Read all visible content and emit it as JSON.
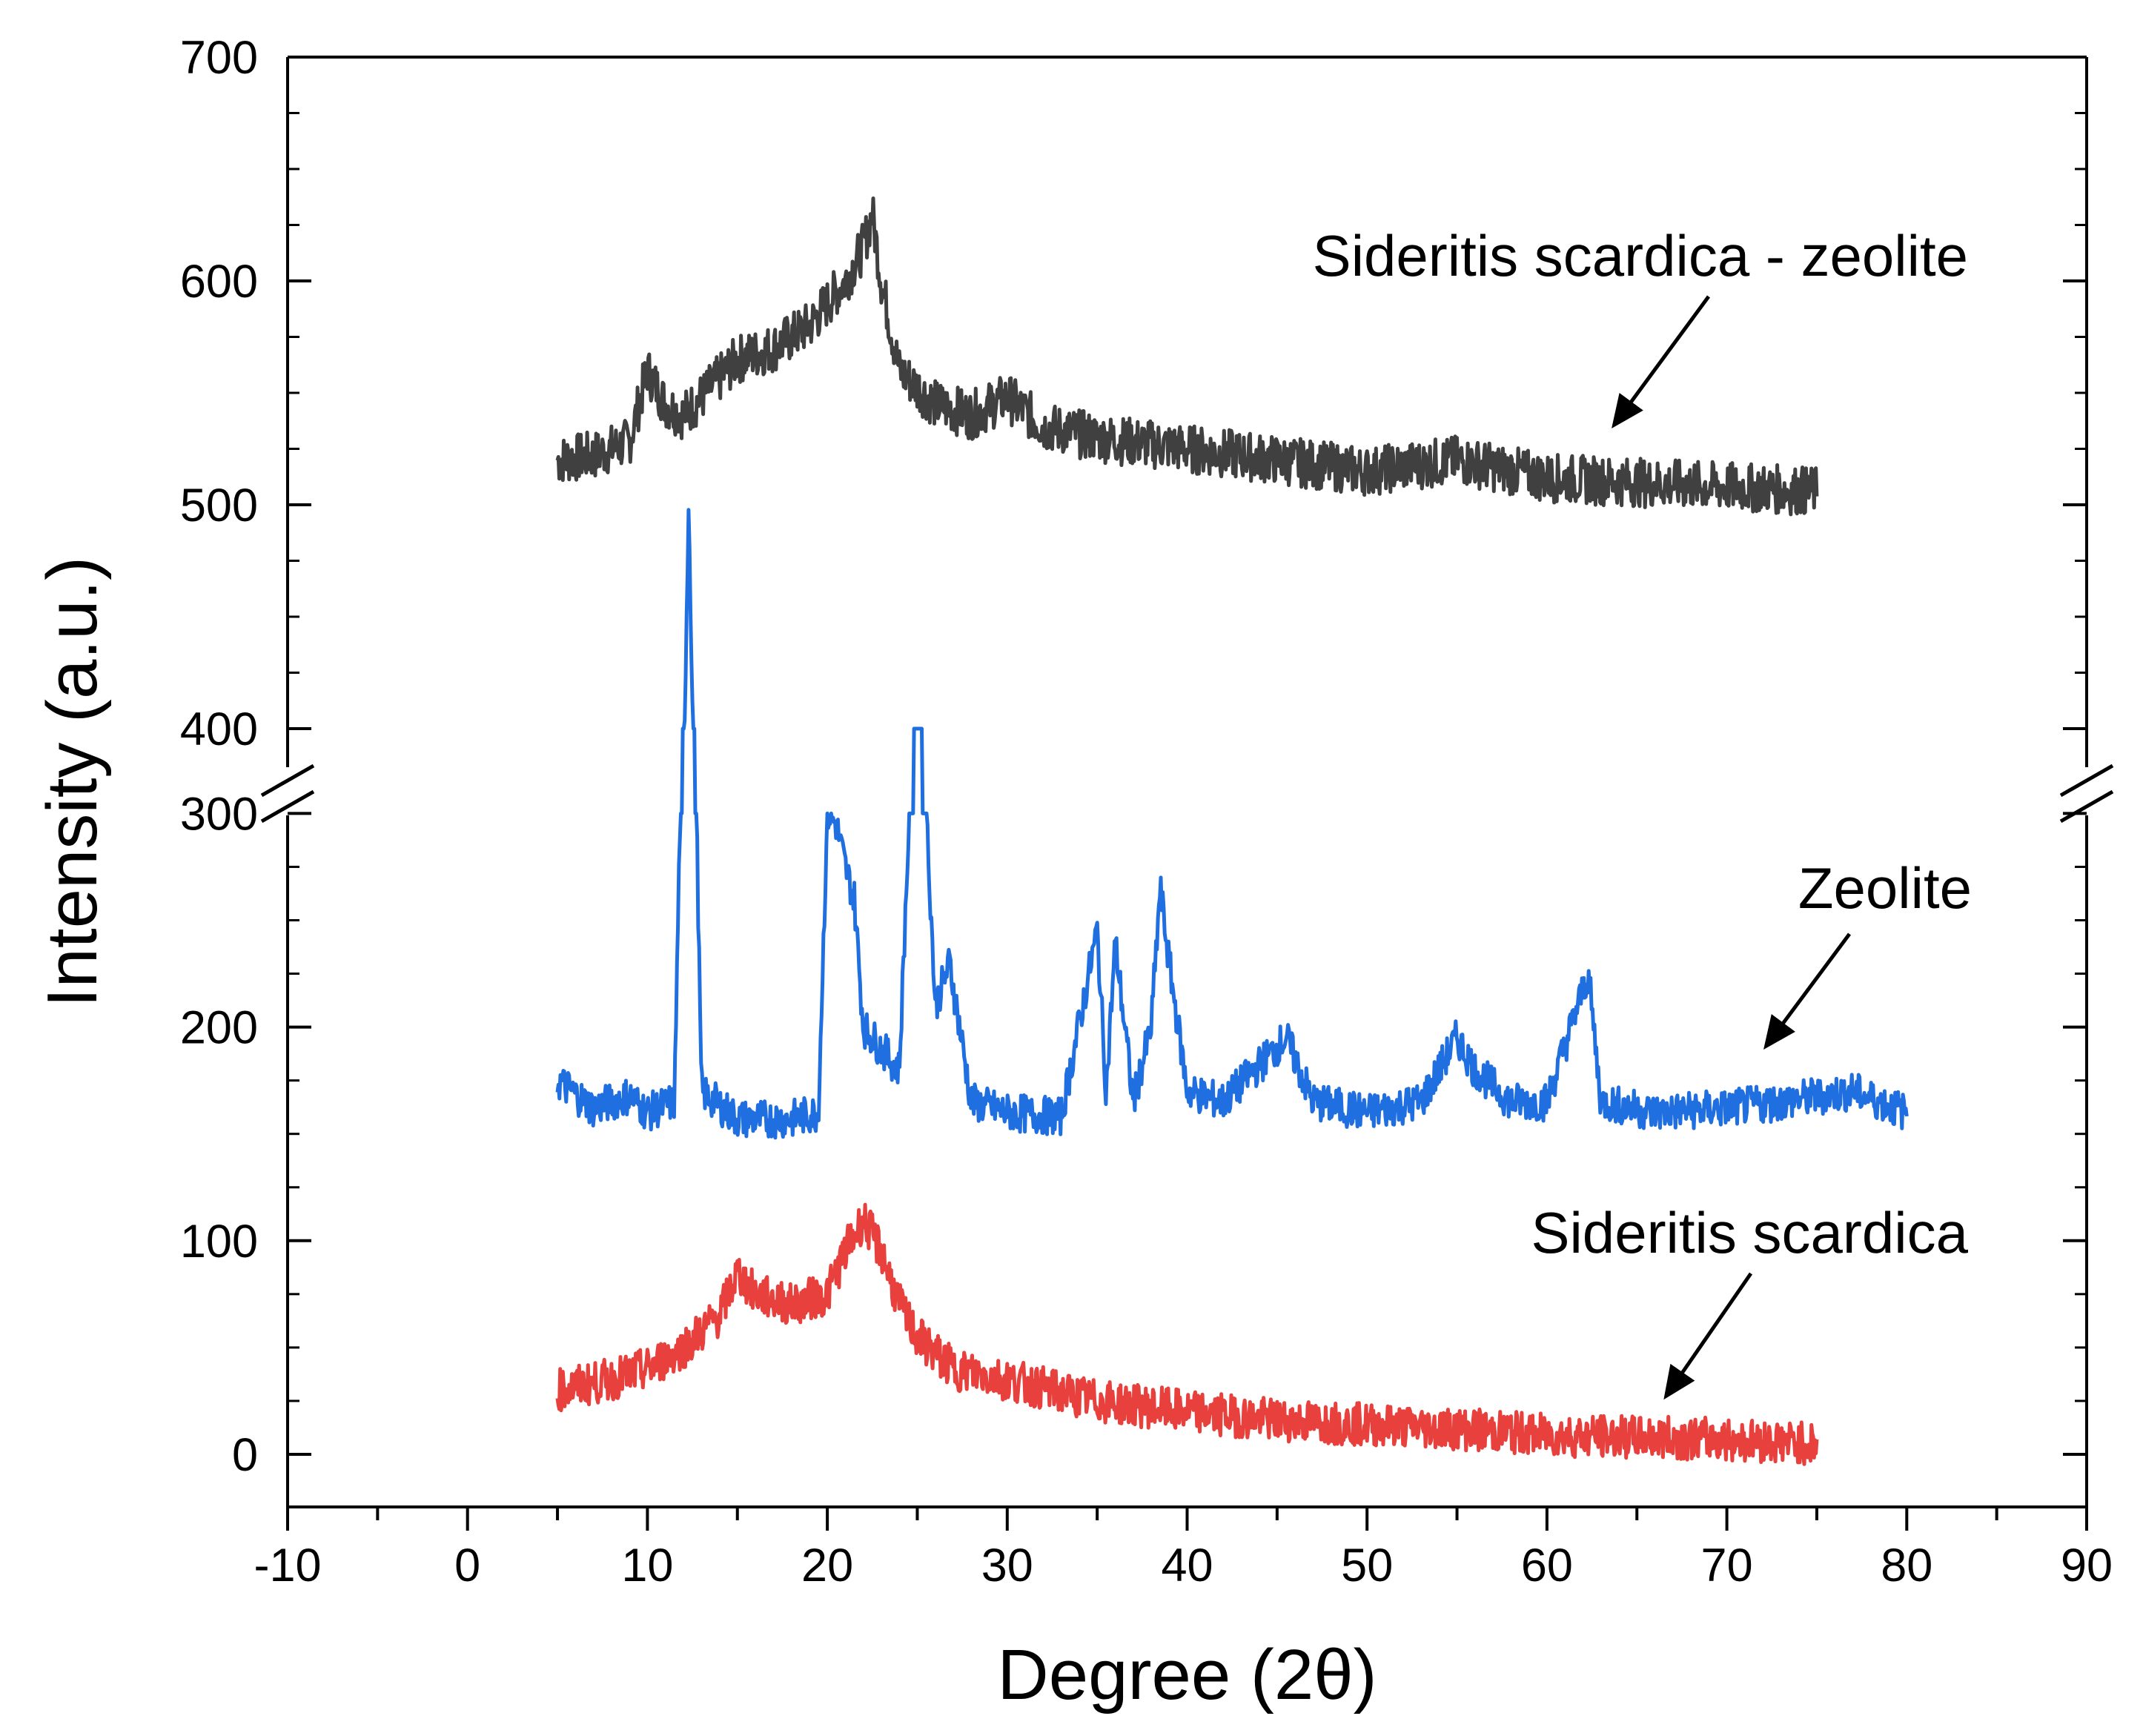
{
  "chart_data": {
    "type": "line",
    "title": "",
    "xlabel": "Degree (2θ)",
    "ylabel": "Intensity (a.u.)",
    "xlim": [
      -10,
      90
    ],
    "ylim": [
      -25,
      700
    ],
    "y_axis_break": {
      "from": 300,
      "to": 400
    },
    "xticks": [
      "-10",
      "0",
      "10",
      "20",
      "30",
      "40",
      "50",
      "60",
      "70",
      "80",
      "90"
    ],
    "yticks": [
      "0",
      "100",
      "200",
      "300",
      "400",
      "500",
      "600",
      "700"
    ],
    "grid": false,
    "legend": "none",
    "series": [
      {
        "name": "Sideritis scardica - zeolite",
        "color": "#404040",
        "x": [
          5,
          7,
          9,
          10,
          11,
          12,
          13,
          15,
          17,
          19,
          20,
          21,
          22,
          22.5,
          23,
          24,
          26,
          28,
          30,
          32,
          35,
          40,
          45,
          50,
          55,
          60,
          65,
          70,
          75
        ],
        "y": [
          520,
          522,
          528,
          560,
          545,
          540,
          548,
          565,
          570,
          580,
          590,
          600,
          615,
          630,
          600,
          560,
          545,
          540,
          548,
          535,
          530,
          525,
          520,
          515,
          520,
          512,
          510,
          508,
          506
        ]
      },
      {
        "name": "Zeolite",
        "color": "#1f6fe0",
        "x": [
          5,
          7,
          9,
          10,
          11.5,
          12.3,
          13,
          15,
          18,
          19.5,
          20,
          20.5,
          21,
          21.5,
          22,
          24,
          25,
          26,
          26.8,
          28,
          30,
          33,
          35,
          35.5,
          36,
          37,
          38,
          38.5,
          39,
          40,
          42,
          45.5,
          47,
          50,
          53,
          55,
          56,
          58,
          60,
          62.3,
          63,
          66,
          70,
          73,
          77,
          80
        ],
        "y": [
          175,
          162,
          168,
          160,
          165,
          505,
          170,
          157,
          157,
          160,
          300,
          295,
          275,
          260,
          200,
          180,
          395,
          210,
          230,
          165,
          160,
          158,
          245,
          170,
          240,
          165,
          200,
          265,
          230,
          170,
          165,
          195,
          165,
          160,
          165,
          195,
          180,
          165,
          165,
          225,
          165,
          160,
          162,
          165,
          170,
          160
        ]
      },
      {
        "name": "Sideritis scardica",
        "color": "#e8403c",
        "x": [
          5,
          8,
          10,
          12,
          14,
          15,
          16,
          18,
          20,
          21,
          22,
          23,
          24,
          25,
          27,
          30,
          35,
          40,
          45,
          50,
          55,
          60,
          65,
          70,
          75
        ],
        "y": [
          30,
          35,
          40,
          50,
          65,
          85,
          75,
          70,
          75,
          95,
          110,
          95,
          70,
          55,
          40,
          35,
          25,
          20,
          16,
          14,
          12,
          9,
          8,
          7,
          5
        ]
      }
    ],
    "annotations": [
      {
        "text": "Sideritis scardica - zeolite",
        "arrow_points_to": "Sideritis scardica - zeolite"
      },
      {
        "text": "Zeolite",
        "arrow_points_to": "Zeolite"
      },
      {
        "text": "Sideritis scardica",
        "arrow_points_to": "Sideritis scardica"
      }
    ]
  }
}
